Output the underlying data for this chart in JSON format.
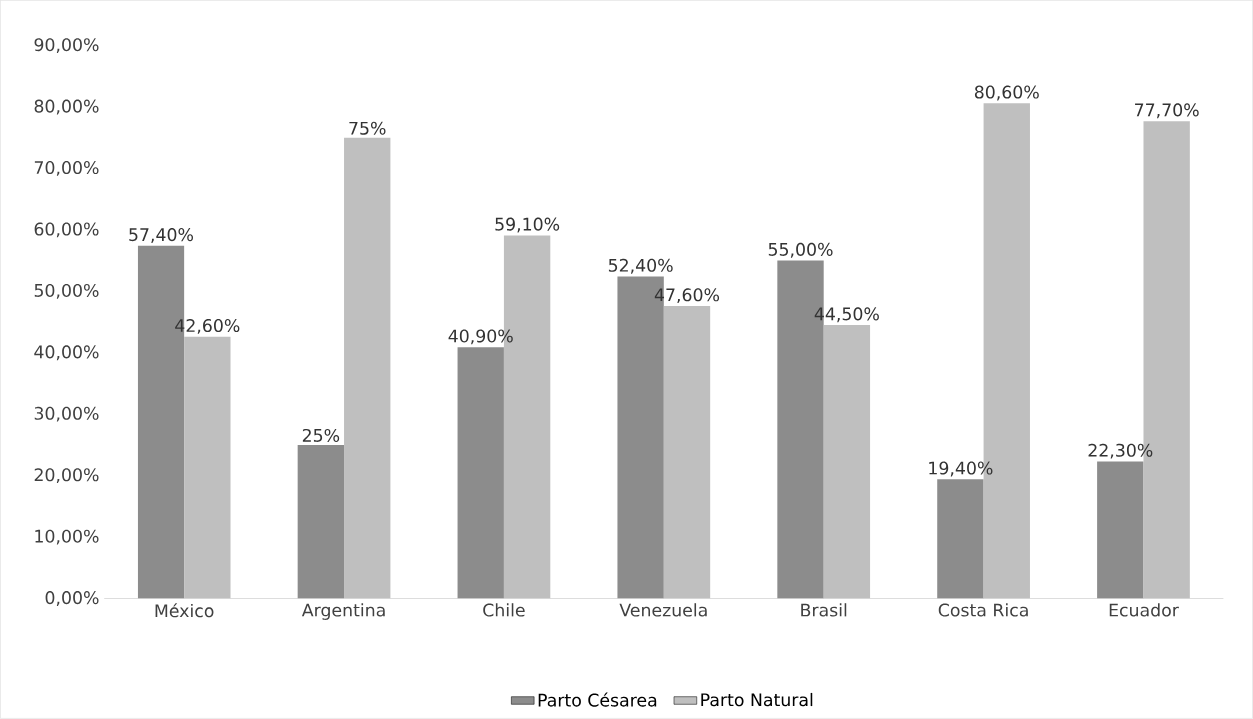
{
  "chart_data": {
    "type": "bar",
    "categories": [
      "México",
      "Argentina",
      "Chile",
      "Venezuela",
      "Brasil",
      "Costa Rica",
      "Ecuador"
    ],
    "series": [
      {
        "name": "Parto Césarea",
        "color": "#8c8c8c",
        "values": [
          57.4,
          25,
          40.9,
          52.4,
          55.0,
          19.4,
          22.3
        ],
        "value_labels": [
          "57,40%",
          "25%",
          "40,90%",
          "52,40%",
          "55,00%",
          "19,40%",
          "22,30%"
        ]
      },
      {
        "name": "Parto Natural",
        "color": "#bfbfbf",
        "values": [
          42.6,
          75,
          59.1,
          47.6,
          44.5,
          80.6,
          77.7
        ],
        "value_labels": [
          "42,60%",
          "75%",
          "59,10%",
          "47,60%",
          "44,50%",
          "80,60%",
          "77,70%"
        ]
      }
    ],
    "ylim": [
      0,
      90
    ],
    "yticks": [
      {
        "value": 0,
        "label": "0,00%"
      },
      {
        "value": 10,
        "label": "10,00%"
      },
      {
        "value": 20,
        "label": "20,00%"
      },
      {
        "value": 30,
        "label": "30,00%"
      },
      {
        "value": 40,
        "label": "40,00%"
      },
      {
        "value": 50,
        "label": "50,00%"
      },
      {
        "value": 60,
        "label": "60,00%"
      },
      {
        "value": 70,
        "label": "70,00%"
      },
      {
        "value": 80,
        "label": "80,00%"
      },
      {
        "value": 90,
        "label": "90,00%"
      }
    ],
    "grid": false,
    "legend": "bottom"
  }
}
